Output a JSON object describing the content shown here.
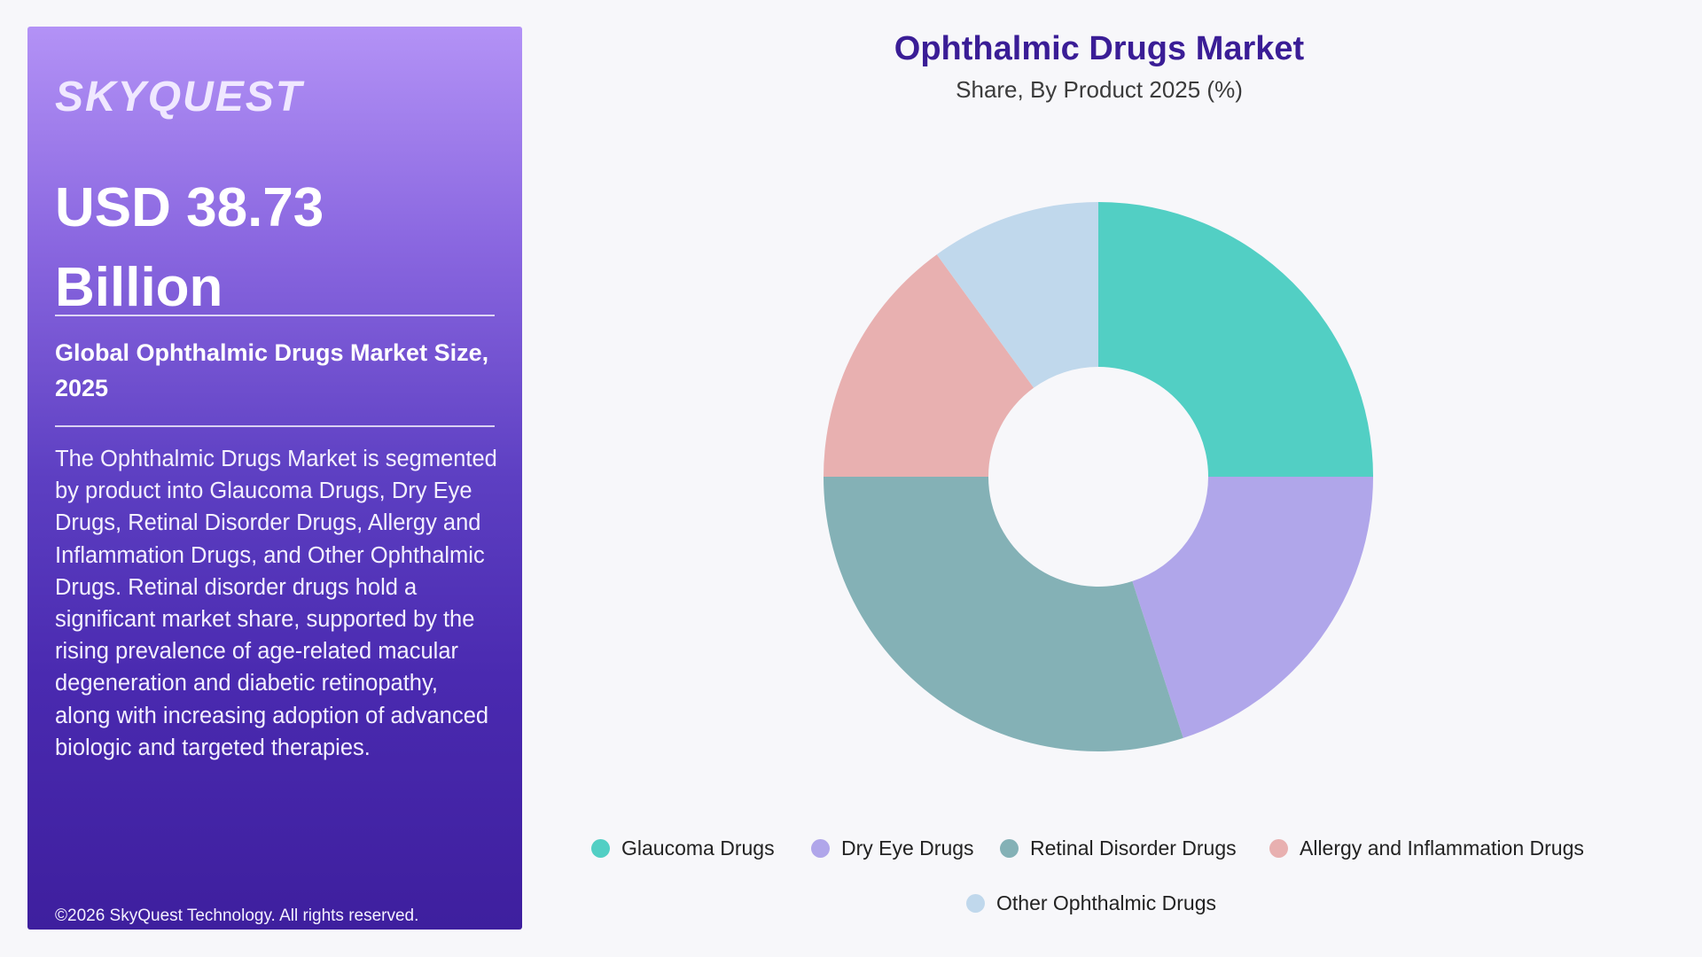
{
  "panel": {
    "logo": "SKYQUEST",
    "market_value": "USD 38.73 Billion",
    "subtitle": "Global Ophthalmic Drugs Market Size, 2025",
    "description": "The Ophthalmic Drugs Market is segmented by product into Glaucoma Drugs, Dry Eye Drugs, Retinal Disorder Drugs, Allergy and Inflammation Drugs, and Other Ophthalmic Drugs. Retinal disorder drugs hold a significant market share, supported by the rising prevalence of age-related macular degeneration and diabetic retinopathy, along with increasing adoption of advanced biologic and targeted therapies.",
    "copyright": "©2026 SkyQuest Technology. All rights reserved."
  },
  "chart_data": {
    "type": "pie",
    "donut": true,
    "title": "Ophthalmic Drugs Market",
    "subtitle": "Share, By Product 2025 (%)",
    "legend_position": "bottom",
    "slices": [
      {
        "label": "Glaucoma Drugs",
        "value": 25,
        "color": "#52cfc4"
      },
      {
        "label": "Dry Eye Drugs",
        "value": 20,
        "color": "#b0a6ea"
      },
      {
        "label": "Retinal Disorder Drugs",
        "value": 30,
        "color": "#84b1b6"
      },
      {
        "label": "Allergy and Inflammation Drugs",
        "value": 15,
        "color": "#e8b0b0"
      },
      {
        "label": "Other Ophthalmic Drugs",
        "value": 10,
        "color": "#c0d8ec"
      }
    ]
  }
}
